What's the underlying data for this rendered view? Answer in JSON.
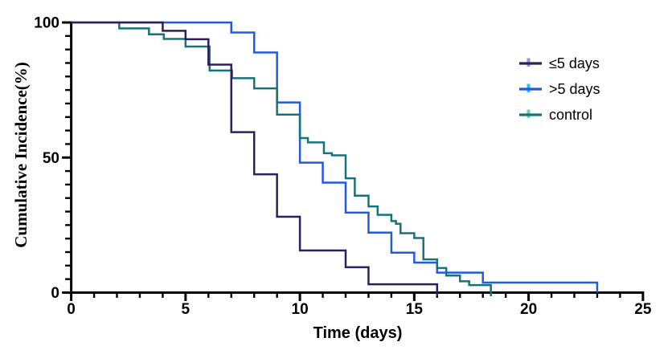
{
  "chart_data": {
    "type": "line",
    "chart_style": "kaplan-meier-step-curves",
    "title": "",
    "xlabel": "Time (days)",
    "ylabel": "Cumulative Incidence(%)",
    "xlim": [
      0,
      25
    ],
    "ylim": [
      0,
      100
    ],
    "x_major_ticks": [
      0,
      5,
      10,
      15,
      20,
      25
    ],
    "x_minor_tick_interval": 1,
    "y_major_ticks": [
      0,
      50,
      100
    ],
    "y_minor_tick_interval": 5,
    "grid": false,
    "legend": {
      "position": "inside-top-right",
      "marker": "line-with-censor-tick"
    },
    "series": [
      {
        "name": "≤5 days",
        "color": "#2d1f5e",
        "censor_tick_color": "#9e90d8",
        "end_cross_axis": true,
        "points": [
          [
            0,
            100
          ],
          [
            4,
            96.9
          ],
          [
            5,
            93.8
          ],
          [
            6,
            84.4
          ],
          [
            7,
            59.4
          ],
          [
            8,
            43.8
          ],
          [
            9,
            28.1
          ],
          [
            10,
            15.6
          ],
          [
            12,
            9.4
          ],
          [
            13,
            3.1
          ],
          [
            16,
            0
          ]
        ]
      },
      {
        "name": ">5 days",
        "color": "#2159e0",
        "censor_tick_color": "#2fbdf2",
        "end_cross_axis": false,
        "points": [
          [
            0,
            100
          ],
          [
            7,
            96.3
          ],
          [
            8,
            88.9
          ],
          [
            9,
            70.4
          ],
          [
            10,
            48.1
          ],
          [
            11,
            40.7
          ],
          [
            12,
            29.6
          ],
          [
            13,
            22.2
          ],
          [
            14,
            14.8
          ],
          [
            15,
            11.1
          ],
          [
            16,
            7.4
          ],
          [
            18,
            3.7
          ],
          [
            23,
            0
          ]
        ]
      },
      {
        "name": "control",
        "color": "#16737a",
        "censor_tick_color": "#74ccc3",
        "end_cross_axis": true,
        "points": [
          [
            2,
            100
          ],
          [
            2.1,
            97.8
          ],
          [
            3.4,
            95.6
          ],
          [
            4.05,
            93.9
          ],
          [
            5,
            91.1
          ],
          [
            6.05,
            82.2
          ],
          [
            7.03,
            79.4
          ],
          [
            8,
            75.6
          ],
          [
            9,
            65.9
          ],
          [
            10,
            57.2
          ],
          [
            10.35,
            55.6
          ],
          [
            11.05,
            51.6
          ],
          [
            11.4,
            50.8
          ],
          [
            12,
            42.3
          ],
          [
            12.4,
            35.9
          ],
          [
            13,
            31.9
          ],
          [
            13.4,
            28.8
          ],
          [
            14,
            26.5
          ],
          [
            14.2,
            25.5
          ],
          [
            14.4,
            22.0
          ],
          [
            15,
            20.2
          ],
          [
            15.4,
            12.3
          ],
          [
            16,
            9.1
          ],
          [
            16.4,
            6.3
          ],
          [
            17,
            4.2
          ],
          [
            17.4,
            2.8
          ],
          [
            18.35,
            0
          ]
        ]
      }
    ]
  }
}
